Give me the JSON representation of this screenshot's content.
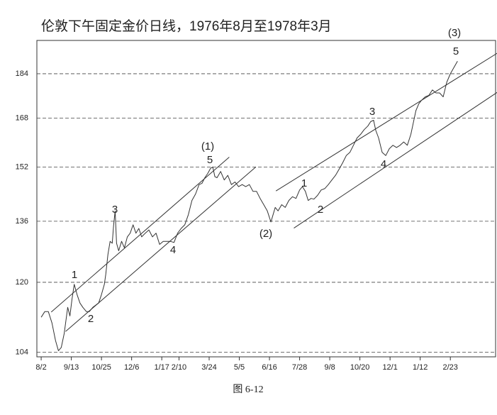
{
  "chart_data": {
    "type": "line",
    "title": "伦敦下午固定金价日线，1976年8月至1978年3月",
    "log_scale": true,
    "grid": true,
    "color": "#333333",
    "x": [
      0,
      5,
      10,
      15,
      20,
      24,
      28,
      32,
      37,
      40,
      43,
      46,
      50,
      54,
      58,
      63,
      67,
      72,
      76,
      80,
      84,
      88,
      90,
      93,
      96,
      99,
      101,
      103,
      105,
      108,
      112,
      116,
      120,
      124,
      128,
      132,
      136,
      140,
      145,
      150,
      155,
      160,
      165,
      170,
      175,
      180,
      185,
      190,
      195,
      200,
      205,
      210,
      215,
      220,
      224,
      228,
      232,
      236,
      239,
      242,
      245,
      250,
      255,
      260,
      265,
      270,
      275,
      280,
      285,
      290,
      295,
      300,
      305,
      310,
      315,
      320,
      323,
      326,
      330,
      335,
      340,
      345,
      350,
      355,
      360,
      364,
      368,
      372,
      376,
      380,
      385,
      390,
      395,
      400,
      405,
      410,
      415,
      420,
      425,
      430,
      435,
      440,
      445,
      450,
      455,
      459,
      463,
      466,
      470,
      475,
      480,
      485,
      490,
      495,
      500,
      505,
      510,
      515,
      518,
      522,
      526,
      530,
      535,
      540,
      545,
      550,
      555,
      560,
      565,
      570,
      575,
      580
    ],
    "values": [
      111.7,
      113,
      113,
      110.4,
      106.5,
      104.3,
      105,
      108,
      114,
      112,
      116,
      119.5,
      117,
      115,
      114,
      113,
      113,
      114,
      114.5,
      115,
      117,
      119.5,
      122,
      127,
      130.5,
      130,
      135,
      138.9,
      130,
      128,
      130.5,
      128.8,
      131.7,
      132.7,
      135,
      132.7,
      134,
      131.7,
      132.7,
      133.6,
      131.7,
      132.7,
      129.7,
      130.5,
      130.5,
      130.5,
      130.2,
      132.7,
      134,
      135,
      137.8,
      141.9,
      143.8,
      146.6,
      147,
      148.7,
      150,
      151.6,
      152,
      149,
      148.7,
      150.6,
      148,
      149.4,
      146.6,
      147.4,
      146,
      146.6,
      146,
      146.6,
      144.6,
      144.6,
      142.5,
      140.7,
      138.9,
      135.8,
      137.8,
      139.9,
      138.9,
      140.7,
      139.9,
      141.9,
      143,
      142.5,
      145,
      146,
      144.6,
      141.9,
      142.5,
      142.3,
      143.4,
      145,
      145.4,
      146.6,
      148,
      149.4,
      151.3,
      153.3,
      155.6,
      156.6,
      158.9,
      161.3,
      162.5,
      164.1,
      165.3,
      166.8,
      167.3,
      163.9,
      161.3,
      156.6,
      155.6,
      157.8,
      158.9,
      158.2,
      158.9,
      160,
      158.9,
      162.5,
      166,
      170.6,
      173,
      174.3,
      175.5,
      176,
      178,
      176.9,
      176.9,
      175.5,
      180.8,
      184,
      186.4,
      188.8
    ],
    "xlim": [
      -6,
      633
    ],
    "xticks": [
      {
        "value": 0,
        "label": "8/2"
      },
      {
        "value": 42,
        "label": "9/13"
      },
      {
        "value": 84,
        "label": "10/25"
      },
      {
        "value": 126,
        "label": "12/6"
      },
      {
        "value": 168,
        "label": "1/17"
      },
      {
        "value": 192,
        "label": "2/10"
      },
      {
        "value": 234,
        "label": "3/24"
      },
      {
        "value": 276,
        "label": "5/5"
      },
      {
        "value": 318,
        "label": "6/16"
      },
      {
        "value": 360,
        "label": "7/28"
      },
      {
        "value": 402,
        "label": "9/8"
      },
      {
        "value": 444,
        "label": "10/20"
      },
      {
        "value": 486,
        "label": "12/1"
      },
      {
        "value": 528,
        "label": "1/12"
      },
      {
        "value": 570,
        "label": "2/23"
      }
    ],
    "ylim": [
      103,
      197
    ],
    "yticks": [
      104,
      120,
      136,
      152,
      168,
      184
    ],
    "channels": [
      {
        "x": [
          14,
          262
        ],
        "y": [
          112.9,
          155.1
        ]
      },
      {
        "x": [
          34,
          299
        ],
        "y": [
          108.5,
          152
        ]
      },
      {
        "x": [
          327,
          642
        ],
        "y": [
          144.7,
          193.1
        ]
      },
      {
        "x": [
          352,
          642
        ],
        "y": [
          134.1,
          178.3
        ]
      }
    ],
    "annotations": [
      "1",
      "2",
      "3",
      "4",
      "(1)",
      "5",
      "(2)",
      "1",
      "2",
      "3",
      "4",
      "(3)",
      "5"
    ]
  },
  "caption": "图 6-12"
}
